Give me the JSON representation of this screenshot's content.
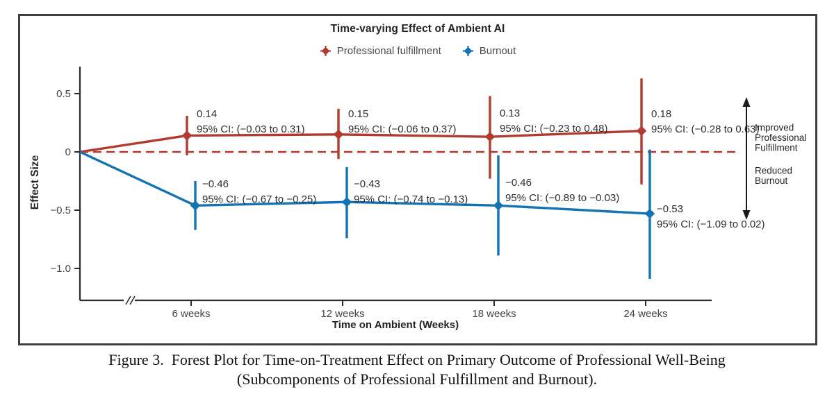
{
  "figure": {
    "title": "Time-varying Effect of Ambient AI",
    "legend": [
      {
        "label": "Professional fulfillment",
        "color": "#b23b30"
      },
      {
        "label": "Burnout",
        "color": "#1473b3"
      }
    ],
    "caption_line1": "Figure 3.  Forest Plot for Time-on-Treatment Effect on Primary Outcome of Professional Well-Being",
    "caption_line2": "(Subcomponents of Professional Fulfillment and Burnout)."
  },
  "chart_data": {
    "type": "line",
    "title": "Time-varying Effect of Ambient AI",
    "xlabel": "Time on Ambient (Weeks)",
    "ylabel": "Effect Size",
    "x_categories": [
      "6 weeks",
      "12 weeks",
      "18 weeks",
      "24 weeks"
    ],
    "x_weeks": [
      6,
      12,
      18,
      24
    ],
    "x_axis_break": true,
    "y_tick_labels": [
      "0.5",
      "0",
      "−0.5",
      "−1.0"
    ],
    "y_tick_values": [
      0.5,
      0,
      -0.5,
      -1.0
    ],
    "ylim": [
      -1.27,
      0.73
    ],
    "grid": false,
    "legend_position": "top",
    "zero_reference_line": {
      "value": 0,
      "style": "dashed",
      "color": "#b5372c"
    },
    "series": [
      {
        "name": "Professional fulfillment",
        "color": "#b23b30",
        "starts_at_origin": true,
        "points": [
          {
            "week": 6,
            "value": 0.14,
            "ci_low": -0.03,
            "ci_high": 0.31,
            "value_label": "0.14",
            "ci_label": "95% CI: (−0.03 to 0.31)"
          },
          {
            "week": 12,
            "value": 0.15,
            "ci_low": -0.06,
            "ci_high": 0.37,
            "value_label": "0.15",
            "ci_label": "95% CI: (−0.06 to 0.37)"
          },
          {
            "week": 18,
            "value": 0.13,
            "ci_low": -0.23,
            "ci_high": 0.48,
            "value_label": "0.13",
            "ci_label": "95% CI: (−0.23 to 0.48)"
          },
          {
            "week": 24,
            "value": 0.18,
            "ci_low": -0.28,
            "ci_high": 0.63,
            "value_label": "0.18",
            "ci_label": "95% CI: (−0.28 to 0.63)"
          }
        ]
      },
      {
        "name": "Burnout",
        "color": "#1473b3",
        "starts_at_origin": true,
        "points": [
          {
            "week": 6,
            "value": -0.46,
            "ci_low": -0.67,
            "ci_high": -0.25,
            "value_label": "−0.46",
            "ci_label": "95% CI: (−0.67 to −0.25)"
          },
          {
            "week": 12,
            "value": -0.43,
            "ci_low": -0.74,
            "ci_high": -0.13,
            "value_label": "−0.43",
            "ci_label": "95% CI: (−0.74 to −0.13)"
          },
          {
            "week": 18,
            "value": -0.46,
            "ci_low": -0.89,
            "ci_high": -0.03,
            "value_label": "−0.46",
            "ci_label": "95% CI: (−0.89 to −0.03)"
          },
          {
            "week": 24,
            "value": -0.53,
            "ci_low": -1.09,
            "ci_high": 0.02,
            "value_label": "−0.53",
            "ci_label": "95% CI: (−1.09 to 0.02)"
          }
        ]
      }
    ],
    "annotations": [
      {
        "direction": "up",
        "lines": [
          "Improved",
          "Professional",
          "Fulfillment"
        ]
      },
      {
        "direction": "down",
        "lines": [
          "Reduced",
          "Burnout"
        ]
      }
    ]
  }
}
